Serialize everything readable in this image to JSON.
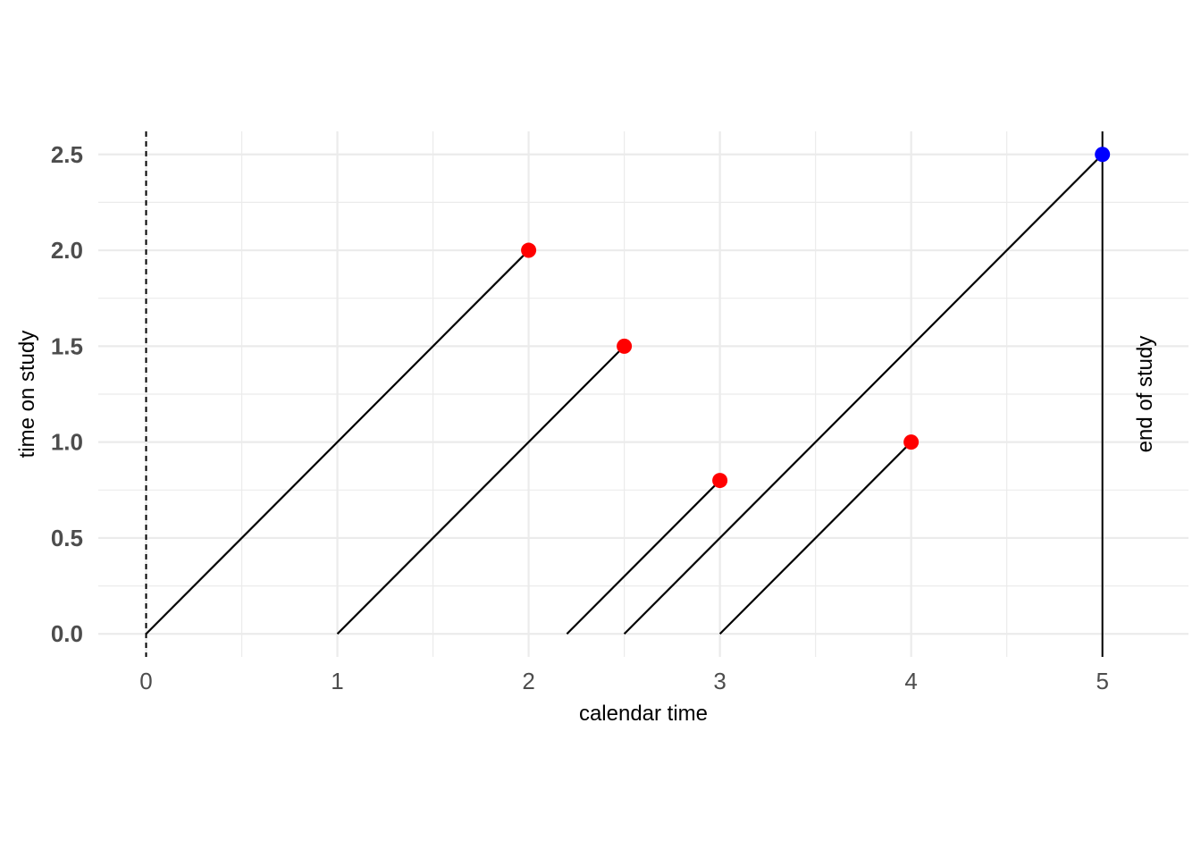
{
  "chart_data": {
    "type": "line",
    "title": "",
    "xlabel": "calendar time",
    "ylabel": "time on study",
    "xlim": [
      -0.25,
      5.45
    ],
    "ylim": [
      -0.12,
      2.62
    ],
    "x_ticks": [
      "0",
      "1",
      "2",
      "3",
      "4",
      "5"
    ],
    "y_ticks": [
      "0.0",
      "0.5",
      "1.0",
      "1.5",
      "2.0",
      "2.5"
    ],
    "x_tick_values": [
      0,
      1,
      2,
      3,
      4,
      5
    ],
    "y_tick_values": [
      0,
      0.5,
      1.0,
      1.5,
      2.0,
      2.5
    ],
    "x_minor": [
      0.5,
      1.5,
      2.5,
      3.5,
      4.5
    ],
    "y_minor": [
      0.25,
      0.75,
      1.25,
      1.75,
      2.25
    ],
    "grid": true,
    "series": [
      {
        "x": [
          0,
          2
        ],
        "y": [
          0,
          2.0
        ],
        "end": "event"
      },
      {
        "x": [
          1,
          2.5
        ],
        "y": [
          0,
          1.5
        ],
        "end": "event"
      },
      {
        "x": [
          2.2,
          3
        ],
        "y": [
          0,
          0.8
        ],
        "end": "event"
      },
      {
        "x": [
          2.5,
          5
        ],
        "y": [
          0,
          2.5
        ],
        "end": "censored"
      },
      {
        "x": [
          3,
          4
        ],
        "y": [
          0,
          1.0
        ],
        "end": "event"
      }
    ],
    "start_line_x": 0,
    "end_line_x": 5,
    "annotations": [
      {
        "text": "end of study",
        "x": 5.22,
        "y": 1.25
      }
    ],
    "colors": {
      "event": "#ff0000",
      "censored": "#0000ff",
      "line": "#000000",
      "grid": "#ebebeb"
    }
  }
}
